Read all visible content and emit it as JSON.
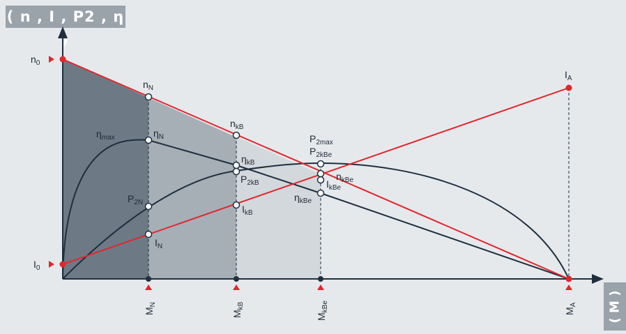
{
  "axes": {
    "y_title": "( n , I , P2 , η )",
    "x_title": "( M )"
  },
  "colors": {
    "background": "#e6e9ec",
    "region_dark": "#6d7a86",
    "region_mid": "#a6aeb6",
    "region_light": "#d3d8dc",
    "red_line": "#e3262b",
    "black_line": "#1f2f3e",
    "label_box": "#9aa2aa"
  },
  "y_markers": [
    {
      "base": "n",
      "sub": "0"
    },
    {
      "base": "I",
      "sub": "0"
    }
  ],
  "x_markers": [
    {
      "base": "M",
      "sub": "N"
    },
    {
      "base": "M",
      "sub": "kB"
    },
    {
      "base": "M",
      "sub": "kBe"
    },
    {
      "base": "M",
      "sub": "A"
    }
  ],
  "curve_labels": {
    "n_N": {
      "base": "n",
      "sub": "N"
    },
    "n_kB": {
      "base": "n",
      "sub": "kB"
    },
    "n_kBe": {
      "base": "n",
      "sub": "kBe"
    },
    "eta_max": {
      "base": "η",
      "sub": "max"
    },
    "eta_N": {
      "base": "η",
      "sub": "N"
    },
    "eta_kB": {
      "base": "η",
      "sub": "kB"
    },
    "eta_kBe": {
      "base": "η",
      "sub": "kBe"
    },
    "P2max": {
      "base": "P",
      "sub": "2max"
    },
    "P2kBe": {
      "base": "P",
      "sub": "2kBe"
    },
    "P2kB": {
      "base": "P",
      "sub": "2kB"
    },
    "P2N": {
      "base": "P",
      "sub": "2N"
    },
    "I_kBe": {
      "base": "I",
      "sub": "kBe"
    },
    "I_kB": {
      "base": "I",
      "sub": "kB"
    },
    "I_N": {
      "base": "I",
      "sub": "N"
    },
    "I_A": {
      "base": "I",
      "sub": "A"
    }
  }
}
